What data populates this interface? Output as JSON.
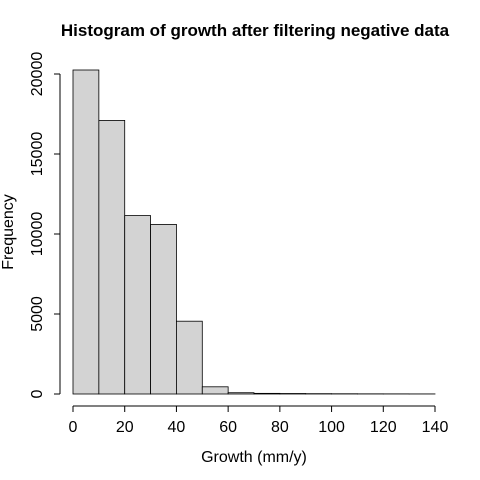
{
  "chart_data": {
    "type": "bar",
    "title": "Histogram of growth after filtering negative data",
    "xlabel": "Growth (mm/y)",
    "ylabel": "Frequency",
    "bin_edges": [
      0,
      10,
      20,
      30,
      40,
      50,
      60,
      70,
      80,
      90,
      100,
      110,
      120,
      130,
      140
    ],
    "values": [
      20250,
      17100,
      11150,
      10600,
      4550,
      450,
      80,
      40,
      30,
      20,
      15,
      10,
      8,
      5
    ],
    "xlim": [
      0,
      140
    ],
    "ylim": [
      0,
      20000
    ],
    "x_ticks": [
      0,
      20,
      40,
      60,
      80,
      100,
      120,
      140
    ],
    "y_ticks": [
      0,
      5000,
      10000,
      15000,
      20000
    ],
    "grid": false,
    "bar_color": "#d3d3d3",
    "edge_color": "#000000"
  }
}
